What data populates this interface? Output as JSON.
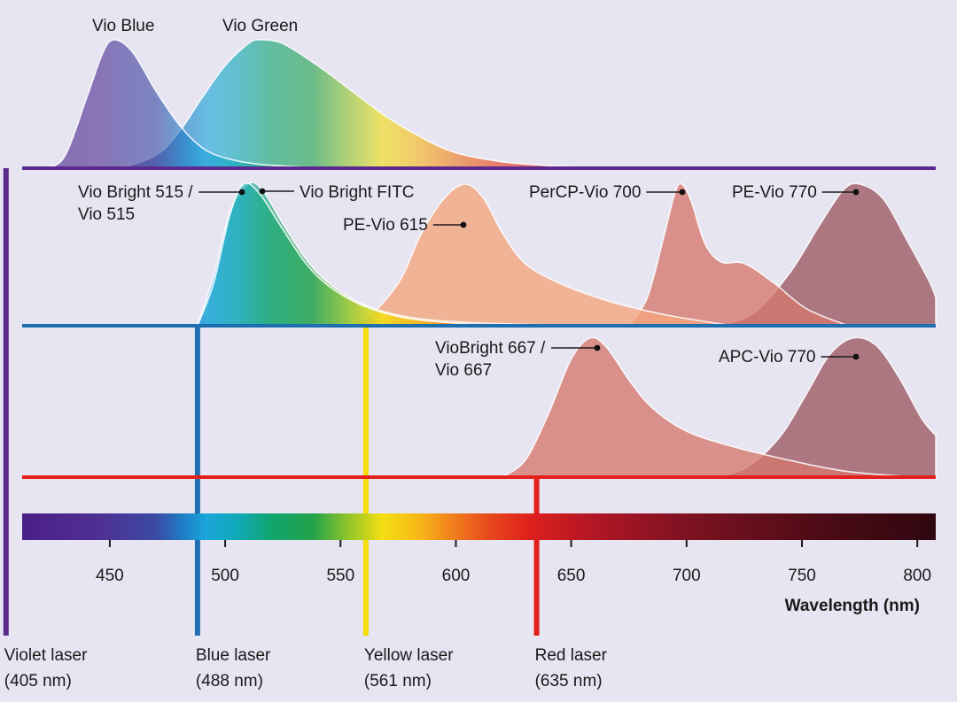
{
  "chart_data": {
    "type": "area",
    "xlabel": "Wavelength (nm)",
    "xlim": [
      412,
      808
    ],
    "ticks": [
      450,
      500,
      550,
      600,
      650,
      700,
      750,
      800
    ],
    "lasers": [
      {
        "id": "violet",
        "name": "Violet laser",
        "wl_text": "(405 nm)",
        "wavelength": 405,
        "color": "#5b2a8c"
      },
      {
        "id": "blue",
        "name": "Blue laser",
        "wl_text": "(488 nm)",
        "wavelength": 488,
        "color": "#1e6fb0"
      },
      {
        "id": "yellow",
        "name": "Yellow laser",
        "wl_text": "(561 nm)",
        "wavelength": 561,
        "color": "#f5dc0a"
      },
      {
        "id": "red",
        "name": "Red laser",
        "wl_text": "(635 nm)",
        "wavelength": 635,
        "color": "#e3201b"
      }
    ],
    "series": [
      {
        "name": "Vio Blue",
        "laser": "violet",
        "peak_nm": 452,
        "emission": [
          [
            420,
            0
          ],
          [
            430,
            0.08
          ],
          [
            440,
            0.55
          ],
          [
            447,
            0.9
          ],
          [
            452,
            1
          ],
          [
            460,
            0.9
          ],
          [
            470,
            0.6
          ],
          [
            480,
            0.34
          ],
          [
            490,
            0.16
          ],
          [
            500,
            0.08
          ],
          [
            515,
            0.03
          ],
          [
            535,
            0.01
          ],
          [
            560,
            0
          ]
        ]
      },
      {
        "name": "Vio Green",
        "laser": "violet",
        "peak_nm": 515,
        "emission": [
          [
            455,
            0
          ],
          [
            470,
            0.1
          ],
          [
            480,
            0.28
          ],
          [
            490,
            0.55
          ],
          [
            500,
            0.8
          ],
          [
            510,
            0.97
          ],
          [
            515,
            1
          ],
          [
            525,
            0.97
          ],
          [
            540,
            0.8
          ],
          [
            555,
            0.6
          ],
          [
            570,
            0.4
          ],
          [
            585,
            0.24
          ],
          [
            600,
            0.12
          ],
          [
            620,
            0.05
          ],
          [
            640,
            0.02
          ],
          [
            660,
            0
          ]
        ]
      },
      {
        "name": "Vio Bright FITC",
        "laser": "blue",
        "peak_nm": 512,
        "emission": [
          [
            488,
            0
          ],
          [
            495,
            0.35
          ],
          [
            502,
            0.8
          ],
          [
            510,
            1
          ],
          [
            516,
            0.96
          ],
          [
            525,
            0.72
          ],
          [
            535,
            0.47
          ],
          [
            545,
            0.3
          ],
          [
            560,
            0.15
          ],
          [
            580,
            0.06
          ],
          [
            610,
            0.02
          ],
          [
            660,
            0
          ]
        ]
      },
      {
        "name": "Vio Bright 515 / Vio 515",
        "laser": "blue",
        "peak_nm": 508,
        "emission": [
          [
            488,
            0
          ],
          [
            495,
            0.3
          ],
          [
            502,
            0.78
          ],
          [
            508,
            1
          ],
          [
            515,
            0.93
          ],
          [
            525,
            0.68
          ],
          [
            535,
            0.44
          ],
          [
            545,
            0.28
          ],
          [
            560,
            0.14
          ],
          [
            580,
            0.05
          ],
          [
            610,
            0.01
          ],
          [
            650,
            0
          ]
        ]
      },
      {
        "name": "PE-Vio 615",
        "laser": "blue",
        "peak_nm": 606,
        "emission": [
          [
            540,
            0
          ],
          [
            560,
            0.05
          ],
          [
            575,
            0.3
          ],
          [
            585,
            0.65
          ],
          [
            595,
            0.9
          ],
          [
            604,
            1
          ],
          [
            612,
            0.9
          ],
          [
            620,
            0.66
          ],
          [
            630,
            0.44
          ],
          [
            645,
            0.3
          ],
          [
            665,
            0.18
          ],
          [
            690,
            0.08
          ],
          [
            720,
            0
          ]
        ]
      },
      {
        "name": "PerCP-Vio 700",
        "laser": "blue",
        "peak_nm": 698,
        "emission": [
          [
            675,
            0
          ],
          [
            683,
            0.2
          ],
          [
            690,
            0.62
          ],
          [
            695,
            0.94
          ],
          [
            698,
            1
          ],
          [
            702,
            0.88
          ],
          [
            708,
            0.58
          ],
          [
            715,
            0.45
          ],
          [
            725,
            0.44
          ],
          [
            738,
            0.3
          ],
          [
            752,
            0.12
          ],
          [
            770,
            0
          ]
        ]
      },
      {
        "name": "PE-Vio 770",
        "laser": "blue",
        "peak_nm": 775,
        "emission": [
          [
            715,
            0
          ],
          [
            730,
            0.1
          ],
          [
            745,
            0.38
          ],
          [
            758,
            0.72
          ],
          [
            768,
            0.96
          ],
          [
            775,
            1
          ],
          [
            785,
            0.9
          ],
          [
            795,
            0.62
          ],
          [
            805,
            0.32
          ],
          [
            808,
            0.2
          ]
        ]
      },
      {
        "name": "VioBright 667 / Vio 667",
        "laser": "red",
        "peak_nm": 661,
        "emission": [
          [
            620,
            0
          ],
          [
            630,
            0.12
          ],
          [
            640,
            0.45
          ],
          [
            650,
            0.85
          ],
          [
            658,
            1
          ],
          [
            665,
            0.94
          ],
          [
            675,
            0.7
          ],
          [
            685,
            0.5
          ],
          [
            700,
            0.33
          ],
          [
            720,
            0.22
          ],
          [
            745,
            0.12
          ],
          [
            770,
            0.04
          ],
          [
            800,
            0
          ]
        ]
      },
      {
        "name": "APC-Vio 770",
        "laser": "red",
        "peak_nm": 775,
        "emission": [
          [
            710,
            0
          ],
          [
            725,
            0.06
          ],
          [
            740,
            0.28
          ],
          [
            752,
            0.6
          ],
          [
            762,
            0.88
          ],
          [
            772,
            1
          ],
          [
            782,
            0.95
          ],
          [
            792,
            0.72
          ],
          [
            802,
            0.42
          ],
          [
            808,
            0.3
          ]
        ]
      }
    ]
  }
}
